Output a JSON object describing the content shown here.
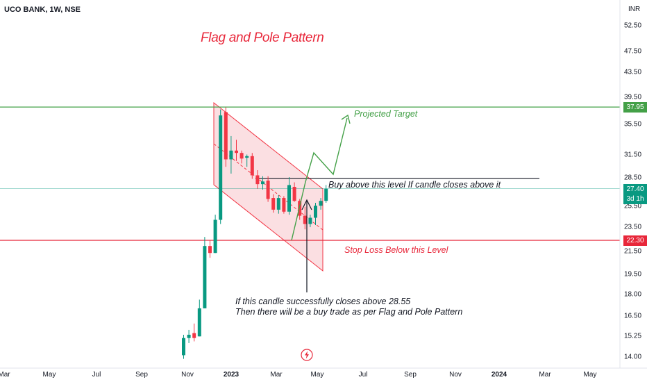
{
  "symbol": {
    "title": "UCO BANK, 1W, NSE"
  },
  "currency": "INR",
  "pattern_title": "Flag and Pole Pattern",
  "annotations": {
    "projected_target": "Projected Target",
    "buy_above": "Buy above this level If candle closes above it",
    "stop_loss": "Stop Loss Below this Level",
    "note_line1": "If this candle successfully closes above 28.55",
    "note_line2": "Then there will be a buy trade as per Flag and Pole Pattern"
  },
  "price_axis": {
    "ticks": [
      "52.50",
      "47.50",
      "43.50",
      "39.50",
      "35.50",
      "31.50",
      "28.50",
      "25.50",
      "23.50",
      "21.50",
      "19.50",
      "18.00",
      "16.50",
      "15.25",
      "14.00"
    ],
    "scale": "log"
  },
  "price_badges": {
    "target": {
      "value": "37.95",
      "color": "#43a047"
    },
    "current": {
      "value": "27.40",
      "countdown": "3d 1h",
      "color": "#089981"
    },
    "stop": {
      "value": "22.30",
      "color": "#e8273a"
    }
  },
  "levels": {
    "target": 37.95,
    "buy": 28.55,
    "stop": 22.3,
    "current": 27.4
  },
  "time_axis": {
    "labels": [
      {
        "text": "Mar",
        "bold": false
      },
      {
        "text": "May",
        "bold": false
      },
      {
        "text": "Jul",
        "bold": false
      },
      {
        "text": "Sep",
        "bold": false
      },
      {
        "text": "Nov",
        "bold": false
      },
      {
        "text": "2023",
        "bold": true
      },
      {
        "text": "Mar",
        "bold": false
      },
      {
        "text": "May",
        "bold": false
      },
      {
        "text": "Jul",
        "bold": false
      },
      {
        "text": "Sep",
        "bold": false
      },
      {
        "text": "Nov",
        "bold": false
      },
      {
        "text": "2024",
        "bold": true
      },
      {
        "text": "Mar",
        "bold": false
      },
      {
        "text": "May",
        "bold": false
      }
    ]
  },
  "colors": {
    "up": "#089981",
    "down": "#f23645",
    "target_line": "#43a047",
    "stop_line": "#e8273a",
    "flag_fill": "#f8c5cb"
  },
  "chart_data": {
    "type": "candlestick",
    "timeframe": "1W",
    "candles": [
      {
        "o": 14.1,
        "h": 15.3,
        "l": 13.9,
        "c": 15.1
      },
      {
        "o": 15.1,
        "h": 15.6,
        "l": 14.8,
        "c": 15.3
      },
      {
        "o": 15.4,
        "h": 16.0,
        "l": 14.9,
        "c": 15.1
      },
      {
        "o": 15.2,
        "h": 17.6,
        "l": 15.2,
        "c": 17.0
      },
      {
        "o": 17.0,
        "h": 22.6,
        "l": 17.0,
        "c": 21.8
      },
      {
        "o": 21.8,
        "h": 22.3,
        "l": 20.8,
        "c": 21.2
      },
      {
        "o": 21.2,
        "h": 24.7,
        "l": 21.2,
        "c": 24.2
      },
      {
        "o": 24.2,
        "h": 37.6,
        "l": 23.8,
        "c": 36.7
      },
      {
        "o": 37.2,
        "h": 37.9,
        "l": 29.9,
        "c": 30.8
      },
      {
        "o": 30.8,
        "h": 33.8,
        "l": 29.1,
        "c": 31.9
      },
      {
        "o": 31.9,
        "h": 33.3,
        "l": 30.6,
        "c": 31.6
      },
      {
        "o": 31.6,
        "h": 31.9,
        "l": 30.3,
        "c": 30.9
      },
      {
        "o": 31.0,
        "h": 31.4,
        "l": 29.9,
        "c": 31.2
      },
      {
        "o": 31.2,
        "h": 31.6,
        "l": 28.5,
        "c": 28.9
      },
      {
        "o": 28.9,
        "h": 29.5,
        "l": 27.4,
        "c": 27.9
      },
      {
        "o": 27.9,
        "h": 28.8,
        "l": 27.3,
        "c": 28.2
      },
      {
        "o": 28.3,
        "h": 28.8,
        "l": 26.0,
        "c": 26.3
      },
      {
        "o": 26.4,
        "h": 26.8,
        "l": 24.9,
        "c": 25.2
      },
      {
        "o": 25.2,
        "h": 26.7,
        "l": 24.8,
        "c": 26.4
      },
      {
        "o": 26.4,
        "h": 26.6,
        "l": 24.8,
        "c": 25.0
      },
      {
        "o": 25.0,
        "h": 28.7,
        "l": 24.7,
        "c": 27.8
      },
      {
        "o": 27.6,
        "h": 28.1,
        "l": 26.0,
        "c": 26.1
      },
      {
        "o": 26.1,
        "h": 26.3,
        "l": 24.2,
        "c": 24.6
      },
      {
        "o": 24.6,
        "h": 25.5,
        "l": 23.3,
        "c": 23.8
      },
      {
        "o": 23.8,
        "h": 24.7,
        "l": 23.5,
        "c": 24.4
      },
      {
        "o": 24.4,
        "h": 25.9,
        "l": 23.7,
        "c": 25.6
      },
      {
        "o": 25.6,
        "h": 26.4,
        "l": 25.2,
        "c": 26.1
      },
      {
        "o": 26.1,
        "h": 27.8,
        "l": 25.9,
        "c": 27.4
      }
    ]
  }
}
